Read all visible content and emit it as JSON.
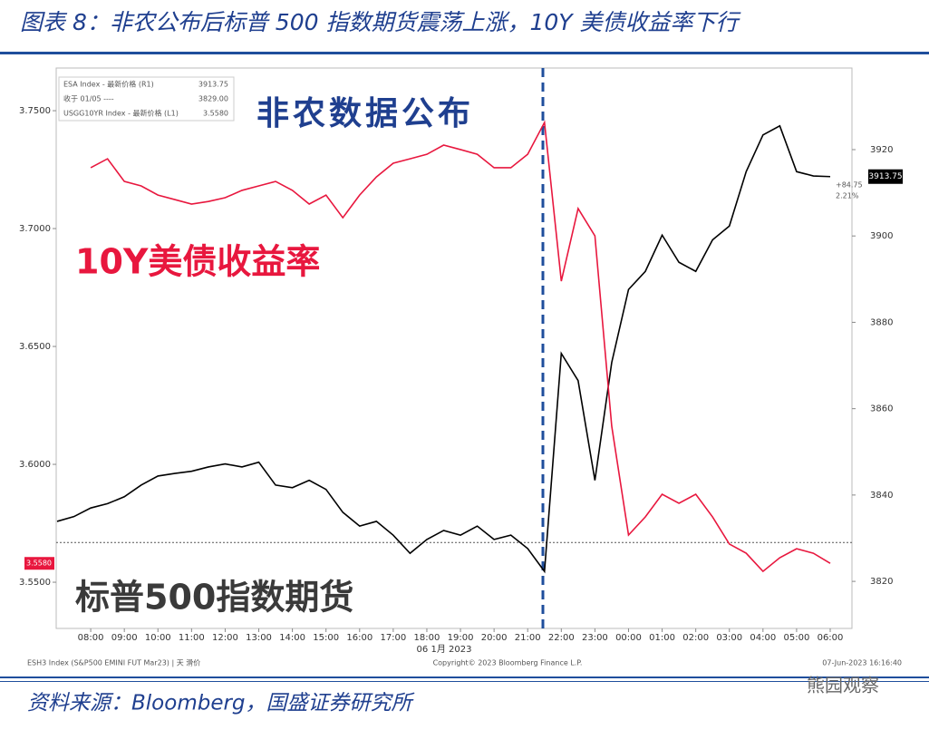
{
  "page_title": "图表 8：非农公布后标普 500 指数期货震荡上涨，10Y 美债收益率下行",
  "source": "资料来源：Bloomberg，国盛证券研究所",
  "watermark": "熊园观察",
  "chart_data": {
    "type": "line",
    "x": [
      "07:00",
      "07:30",
      "08:00",
      "08:30",
      "09:00",
      "09:30",
      "10:00",
      "10:30",
      "11:00",
      "11:30",
      "12:00",
      "12:30",
      "13:00",
      "13:30",
      "14:00",
      "14:30",
      "15:00",
      "15:30",
      "16:00",
      "16:30",
      "17:00",
      "17:30",
      "18:00",
      "18:30",
      "19:00",
      "19:30",
      "20:00",
      "20:30",
      "21:00",
      "21:30",
      "22:00",
      "22:30",
      "23:00",
      "23:30",
      "00:00",
      "00:30",
      "01:00",
      "01:30",
      "02:00",
      "02:30",
      "03:00",
      "03:30",
      "04:00",
      "04:30",
      "05:00",
      "05:30",
      "06:00"
    ],
    "xticks": [
      "08:00",
      "09:00",
      "10:00",
      "11:00",
      "12:00",
      "13:00",
      "14:00",
      "15:00",
      "16:00",
      "17:00",
      "18:00",
      "19:00",
      "20:00",
      "21:00",
      "22:00",
      "23:00",
      "00:00",
      "01:00",
      "02:00",
      "03:00",
      "04:00",
      "05:00",
      "06:00"
    ],
    "date_label": "06 1月 2023",
    "ylim": [
      3.5304,
      3.7681
    ],
    "yticks": [
      {
        "value": 3.55,
        "label": "3.5500"
      },
      {
        "value": 3.6,
        "label": "3.6000"
      },
      {
        "value": 3.65,
        "label": "3.6500"
      },
      {
        "value": 3.7,
        "label": "3.7000"
      },
      {
        "value": 3.75,
        "label": "3.7500"
      }
    ],
    "y2lim": [
      3809.1,
      3938.9
    ],
    "y2ticks": [
      3820,
      3840,
      3860,
      3880,
      3900,
      3920
    ],
    "series": [
      {
        "name": "ESA Index - 最新价格 (R1)",
        "axis": "y2",
        "color": "#000000",
        "last_label": "3913.75",
        "values": [
          3833.9,
          3835,
          3837,
          3838,
          3839.6,
          3842.3,
          3844.4,
          3845,
          3845.5,
          3846.5,
          3847.2,
          3846.5,
          3847.6,
          3842.3,
          3841.7,
          3843.4,
          3841.3,
          3836,
          3832.8,
          3833.9,
          3830.7,
          3826.5,
          3829.7,
          3831.8,
          3830.7,
          3832.8,
          3829.7,
          3830.7,
          3827.6,
          3822.3,
          3872.8,
          3866.5,
          3843.4,
          3870.7,
          3887.6,
          3891.8,
          3900.2,
          3893.9,
          3891.8,
          3899.1,
          3902.3,
          3914.9,
          3923.4,
          3925.5,
          3914.9,
          3913.9,
          3913.75
        ]
      },
      {
        "name": "USGG10YR Index - 最新价格 (L1)",
        "axis": "y",
        "color": "#e8173e",
        "last_label": "3.5580",
        "values": [
          null,
          null,
          3.7258,
          3.7296,
          3.72,
          3.7181,
          3.7142,
          3.7123,
          3.7104,
          3.7115,
          3.7131,
          3.7162,
          3.7181,
          3.72,
          3.7162,
          3.7104,
          3.7142,
          3.7046,
          3.7142,
          3.7219,
          3.7277,
          3.7296,
          3.7315,
          3.7354,
          3.7335,
          3.7315,
          3.7258,
          3.7258,
          3.7315,
          3.745,
          3.6777,
          3.7085,
          3.6969,
          3.6162,
          3.57,
          3.5777,
          3.5873,
          3.5835,
          3.5873,
          3.5777,
          3.5662,
          3.5623,
          3.5546,
          3.5604,
          3.5642,
          3.5623,
          3.558
        ]
      }
    ],
    "reference": {
      "name": "收于 01/05 ----",
      "value": 3829,
      "label": "3829.00"
    },
    "change": {
      "value": 84.75,
      "label": "+84.75"
    },
    "change_pct": {
      "value": 2.21,
      "label": "2.21%"
    },
    "annotations": [
      "非农数据公布",
      "10Y美债收益率",
      "标普500指数期货"
    ],
    "footer_left": "ESH3 Index (S&P500 EMINI FUT Mar23) | 天 滑价",
    "footer_center": "Copyright© 2023 Bloomberg Finance L.P.",
    "footer_right": "07-Jun-2023 16:16:40"
  }
}
